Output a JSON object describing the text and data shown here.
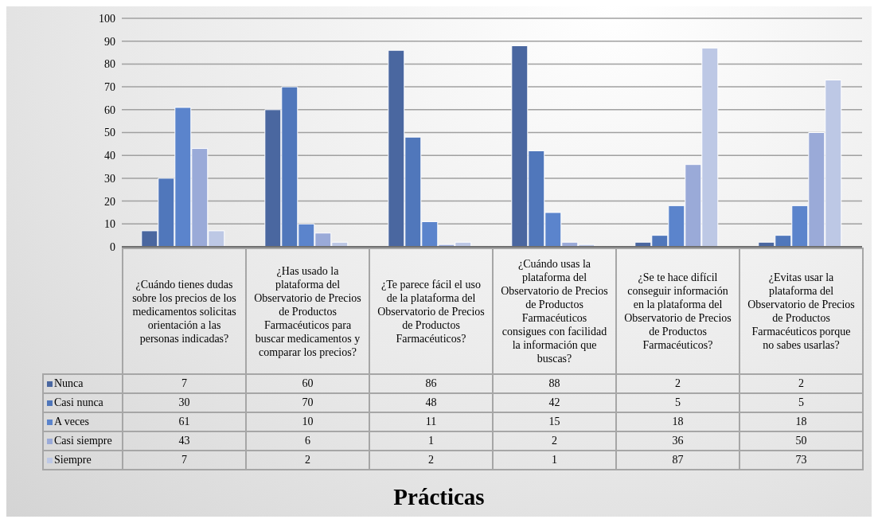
{
  "chart_data": {
    "type": "bar",
    "title": "Prácticas",
    "categories": [
      "¿Cuándo tienes dudas sobre los precios de los medicamentos solicitas orientación a las personas indicadas?",
      "¿Has usado la plataforma del Observatorio de Precios de Productos Farmacéuticos para buscar medicamentos y comparar los precios?",
      "¿Te parece fácil el uso de la plataforma del Observatorio de Precios de Productos Farmacéuticos?",
      "¿Cuándo usas la plataforma del Observatorio de Precios de Productos Farmacéuticos consigues con facilidad la información que buscas?",
      "¿Se te hace difícil conseguir información en la plataforma del Observatorio de Precios de Productos Farmacéuticos?",
      "¿Evitas usar la plataforma del Observatorio de Precios de Productos Farmacéuticos porque no sabes usarlas?"
    ],
    "series": [
      {
        "name": "Nunca",
        "color": "#4a67a0",
        "values": [
          7,
          60,
          86,
          88,
          2,
          2
        ]
      },
      {
        "name": "Casi nunca",
        "color": "#5077bb",
        "values": [
          30,
          70,
          48,
          42,
          5,
          5
        ]
      },
      {
        "name": "A veces",
        "color": "#5b84cc",
        "values": [
          61,
          10,
          11,
          15,
          18,
          18
        ]
      },
      {
        "name": "Casi siempre",
        "color": "#9aaad8",
        "values": [
          43,
          6,
          1,
          2,
          36,
          50
        ]
      },
      {
        "name": "Siempre",
        "color": "#bdc8e5",
        "values": [
          7,
          2,
          2,
          1,
          87,
          73
        ]
      }
    ],
    "ylim": [
      0,
      100
    ],
    "yticks": [
      0,
      10,
      20,
      30,
      40,
      50,
      60,
      70,
      80,
      90,
      100
    ],
    "grid": "y",
    "legend": "bottom",
    "data_labels": true
  }
}
